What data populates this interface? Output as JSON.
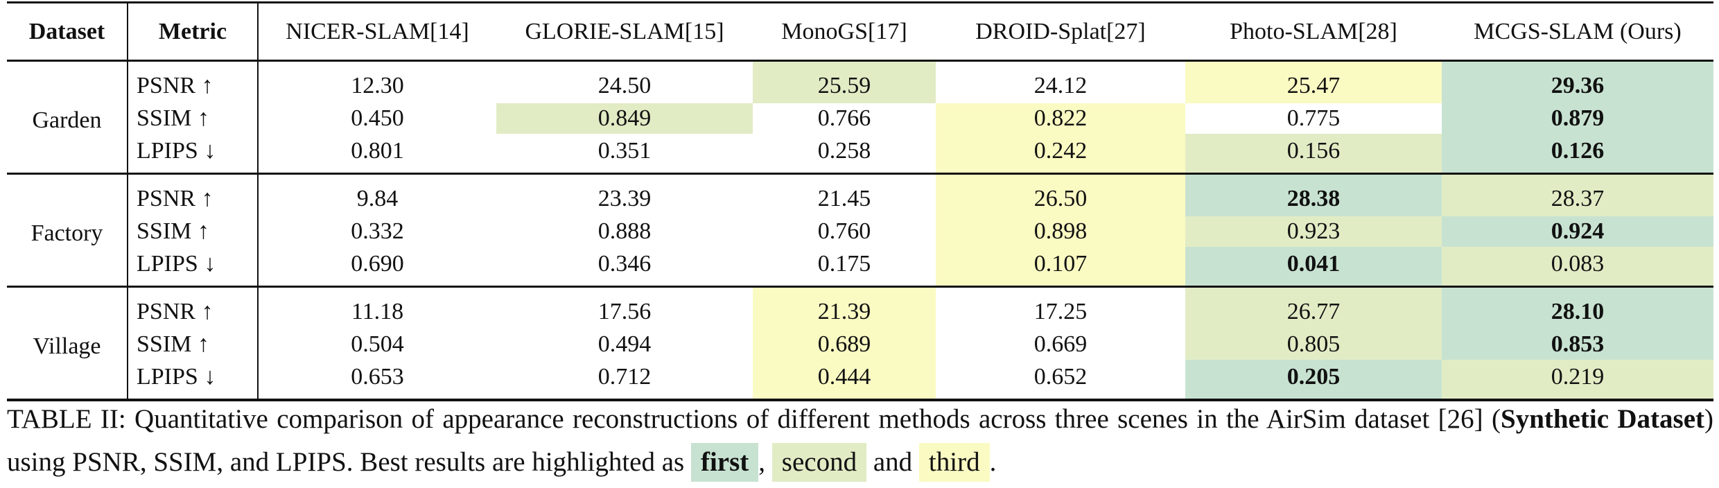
{
  "table": {
    "headers": [
      "Dataset",
      "Metric",
      "NICER-SLAM[14]",
      "GLORIE-SLAM[15]",
      "MonoGS[17]",
      "DROID-Splat[27]",
      "Photo-SLAM[28]",
      "MCGS-SLAM (Ours)"
    ],
    "blocks": [
      {
        "scene": "Garden",
        "rows": [
          {
            "metric": "PSNR ↑",
            "values": [
              "12.30",
              "24.50",
              "25.59",
              "24.12",
              "25.47",
              "29.36"
            ]
          },
          {
            "metric": "SSIM  ↑",
            "values": [
              "0.450",
              "0.849",
              "0.766",
              "0.822",
              "0.775",
              "0.879"
            ]
          },
          {
            "metric": "LPIPS ↓",
            "values": [
              "0.801",
              "0.351",
              "0.258",
              "0.242",
              "0.156",
              "0.126"
            ]
          }
        ]
      },
      {
        "scene": "Factory",
        "rows": [
          {
            "metric": "PSNR ↑",
            "values": [
              "9.84",
              "23.39",
              "21.45",
              "26.50",
              "28.38",
              "28.37"
            ]
          },
          {
            "metric": "SSIM  ↑",
            "values": [
              "0.332",
              "0.888",
              "0.760",
              "0.898",
              "0.923",
              "0.924"
            ]
          },
          {
            "metric": "LPIPS ↓",
            "values": [
              "0.690",
              "0.346",
              "0.175",
              "0.107",
              "0.041",
              "0.083"
            ]
          }
        ]
      },
      {
        "scene": "Village",
        "rows": [
          {
            "metric": "PSNR ↑",
            "values": [
              "11.18",
              "17.56",
              "21.39",
              "17.25",
              "26.77",
              "28.10"
            ]
          },
          {
            "metric": "SSIM  ↑",
            "values": [
              "0.504",
              "0.494",
              "0.689",
              "0.669",
              "0.805",
              "0.853"
            ]
          },
          {
            "metric": "LPIPS ↓",
            "values": [
              "0.653",
              "0.712",
              "0.444",
              "0.652",
              "0.205",
              "0.219"
            ]
          }
        ]
      }
    ]
  },
  "highlight_colors": {
    "first": "#c8e2d1",
    "second": "#e1ecc5",
    "third": "#fafac3"
  },
  "caption": {
    "part1": "TABLE II: Quantitative comparison of appearance reconstructions of different methods across three scenes in the AirSim dataset [26] (",
    "bold_part": "Synthetic Dataset",
    "part2": ") using PSNR, SSIM, and LPIPS. Best results are highlighted as",
    "first_label": "first",
    "comma": ",",
    "second_label": "second",
    "and_word": "and",
    "third_label": "third",
    "period": "."
  }
}
